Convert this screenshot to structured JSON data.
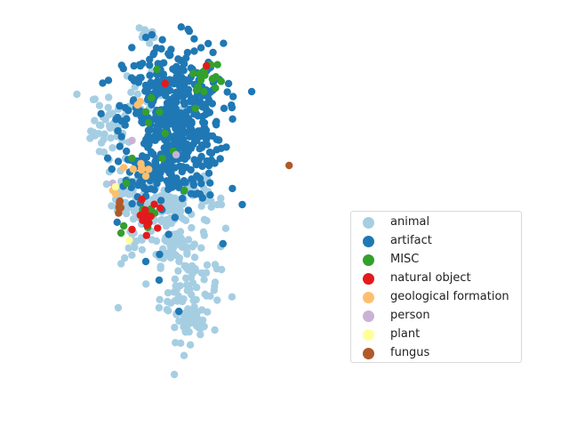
{
  "chart_data": {
    "type": "scatter",
    "title": "",
    "xlabel": "",
    "ylabel": "",
    "axes_visible": false,
    "grid": false,
    "legend_placement": "center-right",
    "xlim": [
      0,
      100
    ],
    "ylim": [
      0,
      100
    ],
    "series": [
      {
        "name": "animal",
        "color": "#a6cee3",
        "clusters": [
          {
            "cx": 28,
            "cy": 71,
            "sx": 4.0,
            "sy": 4.5,
            "n": 45
          },
          {
            "cx": 33,
            "cy": 52,
            "sx": 3.5,
            "sy": 3.0,
            "n": 40
          },
          {
            "cx": 47,
            "cy": 49,
            "sx": 4.5,
            "sy": 3.0,
            "n": 75
          },
          {
            "cx": 50,
            "cy": 39,
            "sx": 4.5,
            "sy": 3.0,
            "n": 45
          },
          {
            "cx": 56,
            "cy": 26,
            "sx": 5.5,
            "sy": 7.0,
            "n": 95
          },
          {
            "cx": 60,
            "cy": 51,
            "sx": 4.0,
            "sy": 3.0,
            "n": 25
          },
          {
            "cx": 36,
            "cy": 38,
            "sx": 2.5,
            "sy": 2.5,
            "n": 12
          },
          {
            "cx": 56,
            "cy": 17,
            "sx": 3.5,
            "sy": 2.5,
            "n": 20
          },
          {
            "cx": 42,
            "cy": 80,
            "sx": 10.0,
            "sy": 6.0,
            "n": 20
          },
          {
            "cx": 40,
            "cy": 97,
            "sx": 1.5,
            "sy": 1.0,
            "n": 8
          }
        ],
        "points": [
          [
            15,
            81
          ],
          [
            30,
            21
          ],
          [
            43,
            97
          ],
          [
            37,
            57
          ],
          [
            66,
            50
          ]
        ]
      },
      {
        "name": "artifact",
        "color": "#1f78b4",
        "clusters": [
          {
            "cx": 50,
            "cy": 73,
            "sx": 9.0,
            "sy": 11.0,
            "n": 500
          },
          {
            "cx": 43,
            "cy": 59,
            "sx": 5.0,
            "sy": 3.0,
            "n": 60
          }
        ],
        "points": [
          [
            75,
            50
          ],
          [
            52,
            20
          ],
          [
            68,
            39
          ],
          [
            45,
            36
          ],
          [
            40,
            97
          ],
          [
            40,
            34
          ]
        ]
      },
      {
        "name": "MISC",
        "color": "#33a02c",
        "clusters": [
          {
            "cx": 63,
            "cy": 86,
            "sx": 3.0,
            "sy": 2.0,
            "n": 14
          },
          {
            "cx": 40,
            "cy": 47,
            "sx": 2.0,
            "sy": 2.0,
            "n": 8
          }
        ],
        "points": [
          [
            42,
            80
          ],
          [
            40,
            76
          ],
          [
            47,
            70
          ],
          [
            46,
            63
          ],
          [
            50,
            65
          ],
          [
            58,
            77
          ],
          [
            60,
            85
          ],
          [
            35,
            63
          ],
          [
            54,
            54
          ],
          [
            41,
            73
          ],
          [
            44,
            88
          ],
          [
            31,
            42
          ],
          [
            33,
            56
          ],
          [
            32,
            44
          ],
          [
            45,
            76
          ]
        ]
      },
      {
        "name": "natural object",
        "color": "#e31a1c",
        "clusters": [
          {
            "cx": 40,
            "cy": 46,
            "sx": 2.0,
            "sy": 2.5,
            "n": 14
          }
        ],
        "points": [
          [
            62,
            89
          ],
          [
            47,
            84
          ],
          [
            35,
            43
          ],
          [
            38,
            47
          ]
        ]
      },
      {
        "name": "geological formation",
        "color": "#fdbf6f",
        "clusters": [
          {
            "cx": 38,
            "cy": 60,
            "sx": 2.0,
            "sy": 1.0,
            "n": 6
          }
        ],
        "points": [
          [
            28,
            54
          ],
          [
            29,
            53
          ],
          [
            37,
            78
          ],
          [
            38,
            79
          ],
          [
            40,
            58
          ]
        ]
      },
      {
        "name": "person",
        "color": "#cab2d6",
        "clusters": [],
        "points": [
          [
            35,
            68
          ],
          [
            51,
            64
          ],
          [
            28,
            56
          ]
        ]
      },
      {
        "name": "plant",
        "color": "#ffff99",
        "clusters": [],
        "points": [
          [
            34,
            40
          ],
          [
            29,
            55
          ]
        ]
      },
      {
        "name": "fungus",
        "color": "#b15928",
        "clusters": [
          {
            "cx": 30,
            "cy": 50,
            "sx": 1.0,
            "sy": 1.0,
            "n": 5
          }
        ],
        "points": [
          [
            92,
            61
          ]
        ]
      }
    ]
  }
}
